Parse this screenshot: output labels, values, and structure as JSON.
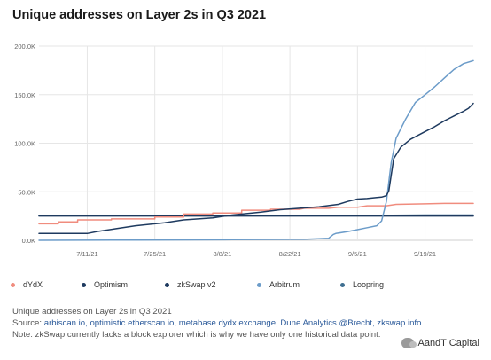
{
  "chart_data": {
    "type": "line",
    "title": "Unique addresses on Layer 2s in Q3 2021",
    "x_ticks": [
      "7/11/21",
      "7/25/21",
      "8/8/21",
      "8/22/21",
      "9/5/21",
      "9/19/21"
    ],
    "x_tick_days": [
      10,
      24,
      38,
      52,
      66,
      80
    ],
    "x_range_days": [
      0,
      90
    ],
    "y_ticks": [
      0,
      50000,
      100000,
      150000,
      200000
    ],
    "y_tick_labels": [
      "0.0K",
      "50.0K",
      "100.0K",
      "150.0K",
      "200.0K"
    ],
    "ylim": [
      0,
      200000
    ],
    "grid": true,
    "legend_position": "bottom",
    "series": [
      {
        "name": "dYdX",
        "color": "#f08c7e",
        "x": [
          0,
          4,
          4,
          8,
          8,
          15,
          15,
          24,
          24,
          30,
          30,
          36,
          36,
          42,
          42,
          48,
          48,
          54,
          55,
          60,
          62,
          66,
          68,
          72,
          74,
          80,
          84,
          90
        ],
        "y": [
          17000,
          17000,
          19000,
          19000,
          21000,
          21000,
          22000,
          22000,
          24000,
          24000,
          27000,
          27000,
          28000,
          28000,
          31000,
          31000,
          32000,
          32000,
          33000,
          33000,
          34000,
          34000,
          35500,
          35500,
          37000,
          37500,
          38000,
          38000
        ]
      },
      {
        "name": "Optimism",
        "color": "#1e3a5f",
        "x": [
          0,
          10,
          12,
          16,
          20,
          26,
          30,
          36,
          40,
          46,
          50,
          54,
          58,
          62,
          64,
          66,
          68,
          70,
          71,
          72,
          72.5,
          73.5,
          75,
          77,
          80,
          82,
          84,
          86,
          88,
          89,
          90
        ],
        "y": [
          7000,
          7000,
          9000,
          12000,
          15000,
          18000,
          21000,
          23000,
          26000,
          29000,
          31500,
          33000,
          34500,
          37000,
          40000,
          42500,
          43000,
          44000,
          44500,
          46000,
          51000,
          84000,
          96000,
          104000,
          112000,
          117000,
          123000,
          128000,
          133000,
          136000,
          141000
        ]
      },
      {
        "name": "zkSwap v2",
        "color": "#1e3a5f",
        "x": [
          0,
          90
        ],
        "y": [
          25000,
          25000
        ]
      },
      {
        "name": "Arbitrum",
        "color": "#6c9cc9",
        "x": [
          0,
          20,
          40,
          55,
          60,
          61,
          61.5,
          64,
          66,
          68,
          70,
          71,
          72,
          73,
          74,
          75,
          76,
          78,
          80,
          82,
          84,
          86,
          88,
          90
        ],
        "y": [
          0,
          300,
          600,
          1000,
          2000,
          6000,
          7000,
          9000,
          11000,
          13000,
          15000,
          20000,
          40000,
          80000,
          105000,
          115000,
          125000,
          142000,
          150000,
          158000,
          167000,
          176000,
          182000,
          185000
        ]
      },
      {
        "name": "Loopring",
        "color": "#3f6f91",
        "x": [
          0,
          30,
          60,
          70,
          80,
          90
        ],
        "y": [
          25500,
          25500,
          25500,
          25700,
          26000,
          26000
        ]
      }
    ]
  },
  "page": {
    "title": "Unique addresses on Layer 2s in Q3 2021"
  },
  "caption": {
    "line1": "Unique addresses on Layer 2s in Q3 2021",
    "source_prefix": "Source: ",
    "sources": "arbiscan.io, optimistic.etherscan.io, metabase.dydx.exchange, Dune Analytics @Brecht, zkswap.info",
    "note": "Note: zkSwap currently lacks a block explorer which is why we have only one historical data point."
  },
  "watermark": {
    "text": "AandT Capital",
    "icon": "wechat-icon"
  }
}
